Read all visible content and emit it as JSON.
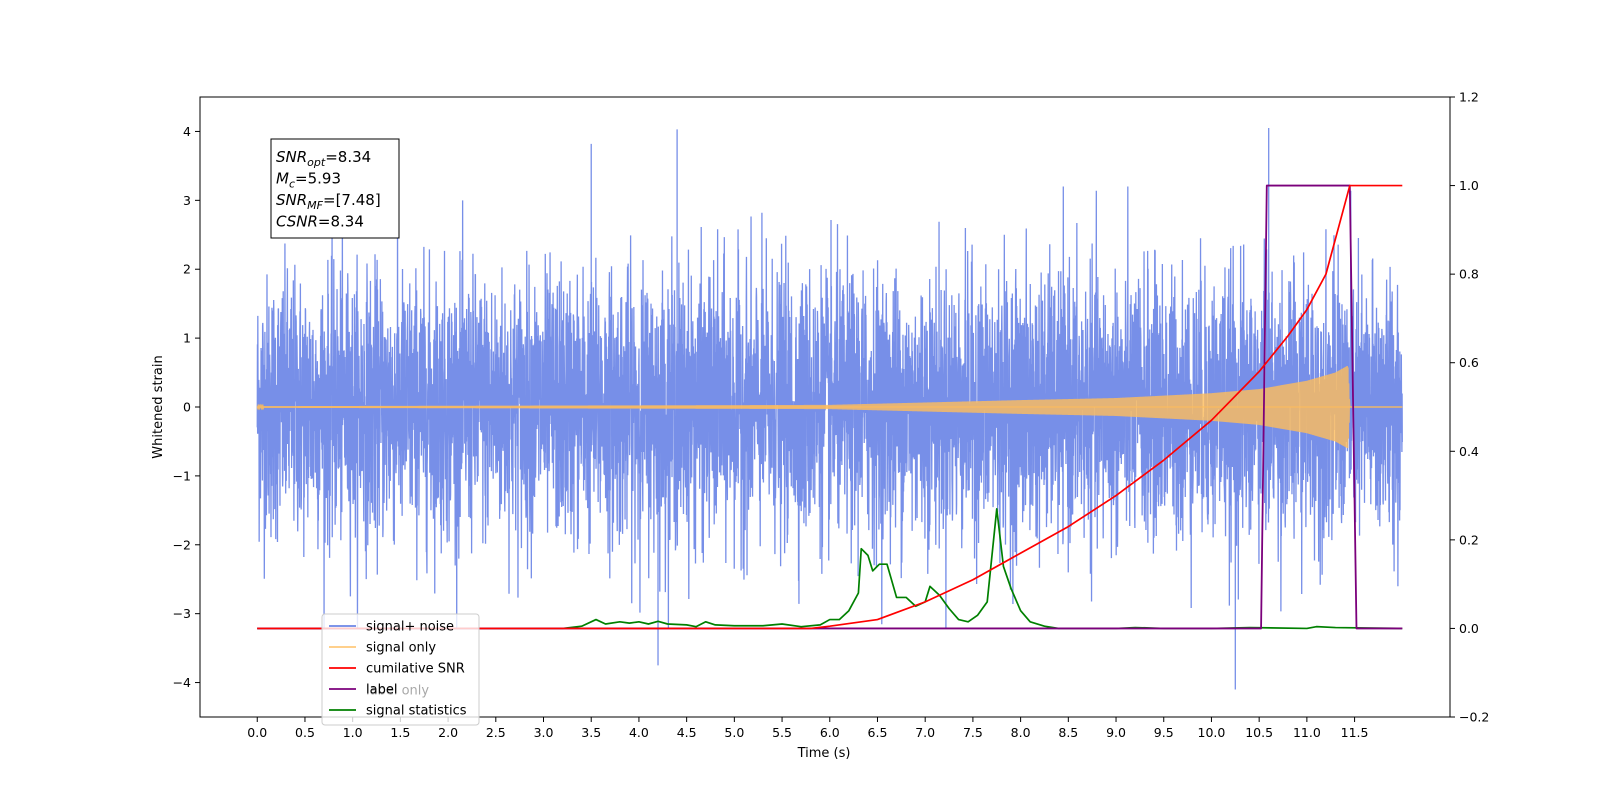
{
  "chart_data": {
    "type": "line",
    "title": "",
    "xlabel": "Time (s)",
    "ylabel": "Whitened strain",
    "y2label": "",
    "xlim": [
      -0.6,
      12.5
    ],
    "ylim": [
      -4.5,
      4.5
    ],
    "y2lim": [
      -0.2,
      1.2
    ],
    "xticks": [
      0.0,
      0.5,
      1.0,
      1.5,
      2.0,
      2.5,
      3.0,
      3.5,
      4.0,
      4.5,
      5.0,
      5.5,
      6.0,
      6.5,
      7.0,
      7.5,
      8.0,
      8.5,
      9.0,
      9.5,
      10.0,
      10.5,
      11.0,
      11.5
    ],
    "xtick_labels": [
      "0.0",
      "0.5",
      "1.0",
      "1.5",
      "2.0",
      "2.5",
      "3.0",
      "3.5",
      "4.0",
      "4.5",
      "5.0",
      "5.5",
      "6.0",
      "6.5",
      "7.0",
      "7.5",
      "8.0",
      "8.5",
      "9.0",
      "9.5",
      "10.0",
      "10.5",
      "11.0",
      "11.5"
    ],
    "yticks": [
      -4,
      -3,
      -2,
      -1,
      0,
      1,
      2,
      3,
      4
    ],
    "ytick_labels": [
      "−4",
      "−3",
      "−2",
      "−1",
      "0",
      "1",
      "2",
      "3",
      "4"
    ],
    "y2ticks": [
      -0.2,
      0.0,
      0.2,
      0.4,
      0.6,
      0.8,
      1.0,
      1.2
    ],
    "y2tick_labels": [
      "−0.2",
      "0.0",
      "0.2",
      "0.4",
      "0.6",
      "0.8",
      "1.0",
      "1.2"
    ],
    "grid": false,
    "legend_position": "lower-left",
    "series": [
      {
        "name": "signal+ noise",
        "axis": "left",
        "color": "#6b86e6",
        "kind": "noise",
        "x_range": [
          0.0,
          12.0
        ],
        "y_range": [
          -4.1,
          4.05
        ],
        "peaks": [
          {
            "x": 4.4,
            "y": 4.03
          },
          {
            "x": 10.6,
            "y": 4.05
          },
          {
            "x": 3.5,
            "y": 3.82
          },
          {
            "x": 4.2,
            "y": -3.75
          },
          {
            "x": 10.25,
            "y": -4.1
          }
        ]
      },
      {
        "name": "signal only",
        "axis": "left",
        "color": "#ffbd5a",
        "kind": "chirp",
        "x_range": [
          0.0,
          11.45
        ],
        "envelope": [
          [
            0.0,
            0.01
          ],
          [
            6.0,
            0.03
          ],
          [
            8.0,
            0.1
          ],
          [
            9.0,
            0.13
          ],
          [
            10.0,
            0.2
          ],
          [
            10.5,
            0.26
          ],
          [
            11.0,
            0.38
          ],
          [
            11.3,
            0.5
          ],
          [
            11.43,
            0.6
          ],
          [
            11.45,
            0.0
          ]
        ]
      },
      {
        "name": "cumilative SNR",
        "axis": "right",
        "color": "#ff0000",
        "points": [
          [
            0.0,
            0.0
          ],
          [
            5.8,
            0.0
          ],
          [
            6.0,
            0.005
          ],
          [
            6.5,
            0.02
          ],
          [
            7.0,
            0.06
          ],
          [
            7.5,
            0.11
          ],
          [
            8.0,
            0.17
          ],
          [
            8.5,
            0.23
          ],
          [
            9.0,
            0.3
          ],
          [
            9.5,
            0.38
          ],
          [
            10.0,
            0.47
          ],
          [
            10.5,
            0.58
          ],
          [
            10.8,
            0.66
          ],
          [
            11.0,
            0.72
          ],
          [
            11.2,
            0.8
          ],
          [
            11.4,
            0.96
          ],
          [
            11.45,
            1.0
          ],
          [
            12.0,
            1.0
          ]
        ]
      },
      {
        "name": "label",
        "axis": "right",
        "color": "#7b007b",
        "points": [
          [
            0.0,
            0.0
          ],
          [
            10.52,
            0.0
          ],
          [
            10.58,
            1.0
          ],
          [
            11.45,
            1.0
          ],
          [
            11.52,
            0.0
          ],
          [
            12.0,
            0.0
          ]
        ]
      },
      {
        "name": "label only",
        "axis": "right",
        "color": "#7b007b",
        "legend_hidden_behind": true,
        "points": []
      },
      {
        "name": "signal statistics",
        "axis": "right",
        "color": "#008000",
        "points": [
          [
            0.0,
            0.0
          ],
          [
            3.2,
            0.0
          ],
          [
            3.4,
            0.005
          ],
          [
            3.55,
            0.02
          ],
          [
            3.65,
            0.01
          ],
          [
            3.8,
            0.015
          ],
          [
            3.9,
            0.012
          ],
          [
            4.0,
            0.015
          ],
          [
            4.1,
            0.01
          ],
          [
            4.2,
            0.016
          ],
          [
            4.3,
            0.01
          ],
          [
            4.5,
            0.008
          ],
          [
            4.6,
            0.004
          ],
          [
            4.7,
            0.015
          ],
          [
            4.8,
            0.008
          ],
          [
            5.0,
            0.006
          ],
          [
            5.3,
            0.006
          ],
          [
            5.5,
            0.01
          ],
          [
            5.7,
            0.004
          ],
          [
            5.9,
            0.008
          ],
          [
            6.0,
            0.02
          ],
          [
            6.1,
            0.02
          ],
          [
            6.2,
            0.04
          ],
          [
            6.3,
            0.08
          ],
          [
            6.33,
            0.18
          ],
          [
            6.4,
            0.165
          ],
          [
            6.45,
            0.13
          ],
          [
            6.52,
            0.145
          ],
          [
            6.6,
            0.145
          ],
          [
            6.7,
            0.07
          ],
          [
            6.8,
            0.07
          ],
          [
            6.9,
            0.05
          ],
          [
            7.0,
            0.06
          ],
          [
            7.05,
            0.095
          ],
          [
            7.15,
            0.075
          ],
          [
            7.25,
            0.045
          ],
          [
            7.35,
            0.02
          ],
          [
            7.45,
            0.015
          ],
          [
            7.55,
            0.03
          ],
          [
            7.65,
            0.06
          ],
          [
            7.75,
            0.27
          ],
          [
            7.82,
            0.14
          ],
          [
            7.9,
            0.09
          ],
          [
            8.0,
            0.04
          ],
          [
            8.1,
            0.015
          ],
          [
            8.25,
            0.005
          ],
          [
            8.4,
            0.0
          ],
          [
            9.0,
            0.0
          ],
          [
            9.2,
            0.002
          ],
          [
            9.5,
            0.0
          ],
          [
            10.0,
            0.0
          ],
          [
            10.4,
            0.002
          ],
          [
            11.0,
            0.0
          ],
          [
            11.1,
            0.004
          ],
          [
            11.3,
            0.002
          ],
          [
            12.0,
            0.0
          ]
        ]
      }
    ],
    "annotation": {
      "lines": [
        {
          "main": "SNR",
          "sub": "opt",
          "value": "=8.34"
        },
        {
          "main": "M",
          "sub": "c",
          "value": "=5.93"
        },
        {
          "main": "SNR",
          "sub": "MF",
          "value": "=[7.48]"
        },
        {
          "main": "CSNR",
          "sub": "",
          "value": "=8.34"
        }
      ]
    }
  }
}
